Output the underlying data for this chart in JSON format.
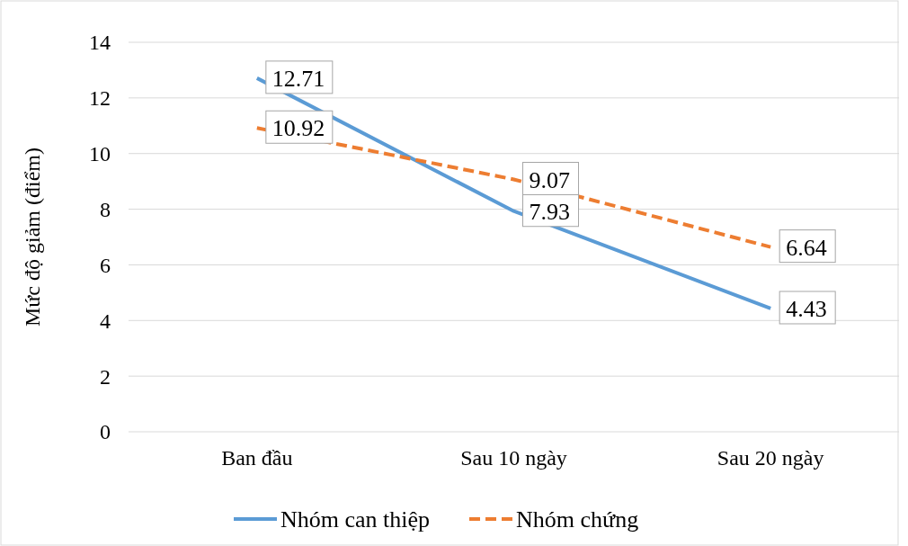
{
  "chart_data": {
    "type": "line",
    "ylabel": "Mức độ giảm (điểm)",
    "categories": [
      "Ban đầu",
      "Sau 10 ngày",
      "Sau 20 ngày"
    ],
    "series": [
      {
        "name": "Nhóm can thiệp",
        "color": "#5b9bd5",
        "values": [
          12.71,
          7.93,
          4.43
        ],
        "line_style": "solid"
      },
      {
        "name": "Nhóm chứng",
        "color": "#ed7d31",
        "values": [
          10.92,
          9.07,
          6.64
        ],
        "line_style": "dashed"
      }
    ],
    "ylim": [
      0,
      14
    ],
    "yticks": [
      0,
      2,
      4,
      6,
      8,
      10,
      12,
      14
    ],
    "grid": "y",
    "legend": "bottom",
    "data_labels": true
  }
}
